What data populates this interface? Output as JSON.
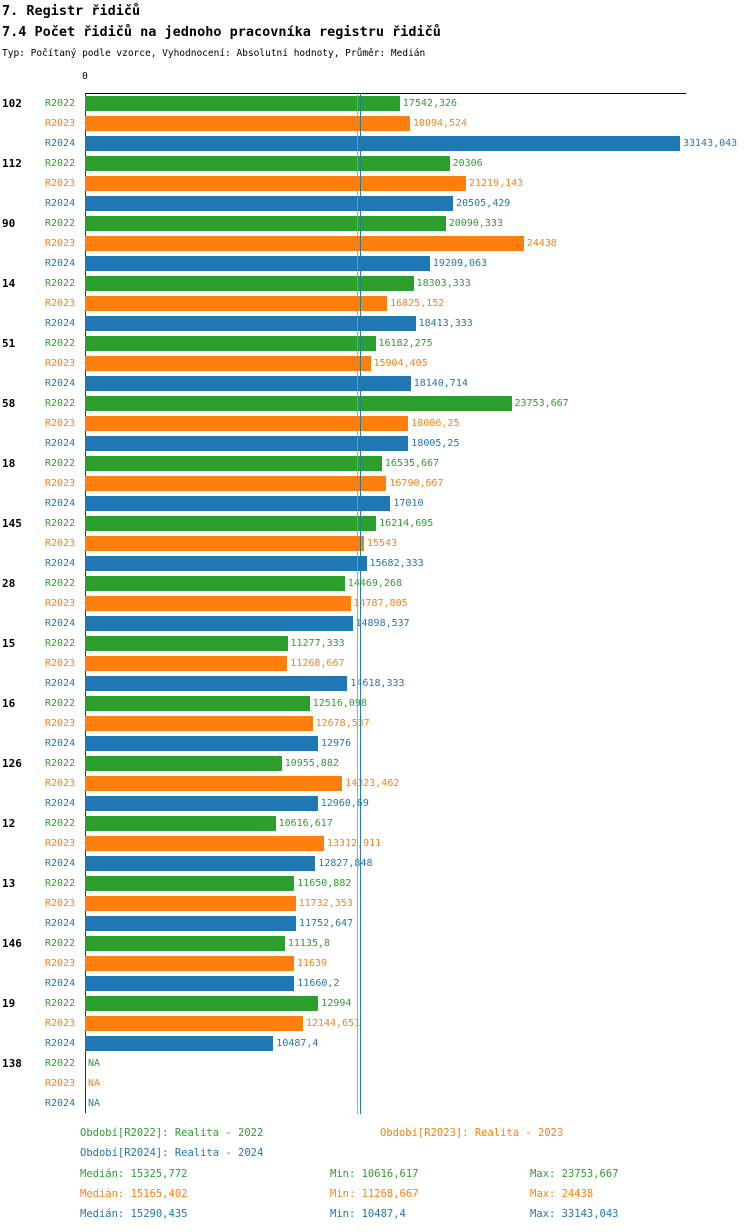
{
  "header": {
    "title": "7. Registr řidičů",
    "subtitle": "7.4 Počet řidičů na jednoho pracovníka registru řidičů",
    "meta": "Typ: Počítaný podle vzorce, Vyhodnocení: Absolutní hodnoty, Průměr: Medián"
  },
  "colors": {
    "r2022": "#2ca02c",
    "r2023": "#ff7f0e",
    "r2024": "#1f77b4"
  },
  "chart_data": {
    "type": "bar",
    "orientation": "horizontal",
    "title": "7.4 Počet řidičů na jednoho pracovníka registru řidičů",
    "axis_zero_label": "0",
    "xlim": [
      0,
      33420
    ],
    "grid": false,
    "series_names": [
      "R2022",
      "R2023",
      "R2024"
    ],
    "groups": [
      {
        "label": "102",
        "values": [
          17542.326,
          18094.524,
          33143.043
        ],
        "display": [
          "17542,326",
          "18094,524",
          "33143,043"
        ]
      },
      {
        "label": "112",
        "values": [
          20306,
          21219.143,
          20505.429
        ],
        "display": [
          "20306",
          "21219,143",
          "20505,429"
        ]
      },
      {
        "label": "90",
        "values": [
          20090.333,
          24438,
          19209.063
        ],
        "display": [
          "20090,333",
          "24438",
          "19209,063"
        ]
      },
      {
        "label": "14",
        "values": [
          18303.333,
          16825.152,
          18413.333
        ],
        "display": [
          "18303,333",
          "16825,152",
          "18413,333"
        ]
      },
      {
        "label": "51",
        "values": [
          16182.275,
          15904.405,
          18140.714
        ],
        "display": [
          "16182,275",
          "15904,405",
          "18140,714"
        ]
      },
      {
        "label": "58",
        "values": [
          23753.667,
          18006.25,
          18005.25
        ],
        "display": [
          "23753,667",
          "18006,25",
          "18005,25"
        ]
      },
      {
        "label": "18",
        "values": [
          16535.667,
          16790.667,
          17010
        ],
        "display": [
          "16535,667",
          "16790,667",
          "17010"
        ]
      },
      {
        "label": "145",
        "values": [
          16214.695,
          15543,
          15682.333
        ],
        "display": [
          "16214,695",
          "15543",
          "15682,333"
        ]
      },
      {
        "label": "28",
        "values": [
          14469.268,
          14787.805,
          14898.537
        ],
        "display": [
          "14469,268",
          "14787,805",
          "14898,537"
        ]
      },
      {
        "label": "15",
        "values": [
          11277.333,
          11268.667,
          14618.333
        ],
        "display": [
          "11277,333",
          "11268,667",
          "14618,333"
        ]
      },
      {
        "label": "16",
        "values": [
          12516.098,
          12678.537,
          12976
        ],
        "display": [
          "12516,098",
          "12678,537",
          "12976"
        ]
      },
      {
        "label": "126",
        "values": [
          10955.882,
          14323.462,
          12960.69
        ],
        "display": [
          "10955,882",
          "14323,462",
          "12960,69"
        ]
      },
      {
        "label": "12",
        "values": [
          10616.617,
          13312.911,
          12827.848
        ],
        "display": [
          "10616,617",
          "13312,911",
          "12827,848"
        ]
      },
      {
        "label": "13",
        "values": [
          11650.882,
          11732.353,
          11752.647
        ],
        "display": [
          "11650,882",
          "11732,353",
          "11752,647"
        ]
      },
      {
        "label": "146",
        "values": [
          11135.8,
          11639,
          11660.2
        ],
        "display": [
          "11135,8",
          "11639",
          "11660,2"
        ]
      },
      {
        "label": "19",
        "values": [
          12994,
          12144.651,
          10487.4
        ],
        "display": [
          "12994",
          "12144,651",
          "10487,4"
        ]
      },
      {
        "label": "138",
        "values": [
          null,
          null,
          null
        ],
        "display": [
          "NA",
          "NA",
          "NA"
        ]
      }
    ],
    "medians": [
      15325.772,
      15165.402,
      15290.435
    ],
    "legend": [
      {
        "label": "Období[R2022]: Realita - 2022"
      },
      {
        "label": "Období[R2023]: Realita - 2023"
      },
      {
        "label": "Období[R2024]: Realita - 2024"
      }
    ],
    "stats": [
      {
        "median": "Medián: 15325,772",
        "min": "Min: 10616,617",
        "max": "Max: 23753,667"
      },
      {
        "median": "Medián: 15165,402",
        "min": "Min: 11268,667",
        "max": "Max: 24438"
      },
      {
        "median": "Medián: 15290,435",
        "min": "Min: 10487,4",
        "max": "Max: 33143,043"
      }
    ]
  }
}
